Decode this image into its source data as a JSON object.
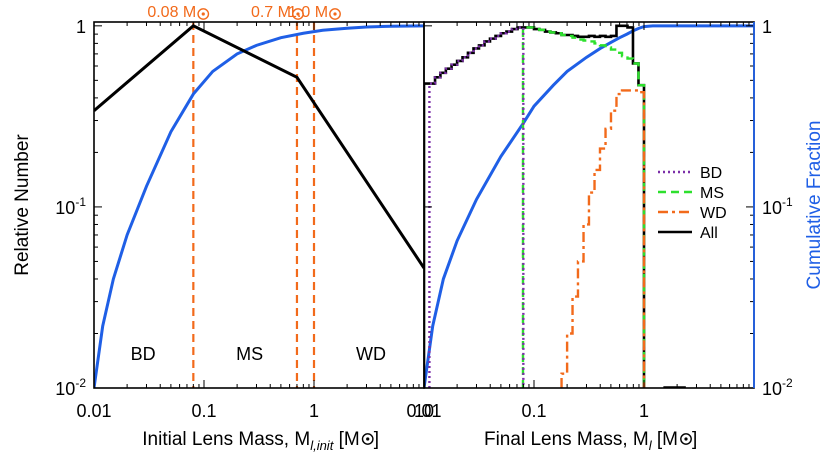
{
  "chart_data": [
    {
      "type": "line",
      "panel": "left",
      "xlabel": "Initial Lens Mass, M",
      "xlabel_sub": "l,init",
      "xlabel_unit_open": " [M",
      "xlabel_unit_close": "]",
      "ylabel": "Relative Number",
      "xscale": "log",
      "yscale": "log",
      "xlim": [
        0.01,
        10
      ],
      "ylim": [
        0.01,
        1.05
      ],
      "xticks": [
        {
          "value": 0.01,
          "label": "0.01"
        },
        {
          "value": 0.1,
          "label": "0.1"
        },
        {
          "value": 1,
          "label": "1"
        },
        {
          "value": 10,
          "label": "10"
        }
      ],
      "yticks": [
        {
          "value": 1,
          "base": "1",
          "exp": ""
        },
        {
          "value": 0.1,
          "base": "10",
          "exp": "-1"
        },
        {
          "value": 0.01,
          "base": "10",
          "exp": "-2"
        }
      ],
      "dividers": [
        {
          "x": 0.08,
          "label": "0.08 M",
          "color": "#f26a1b"
        },
        {
          "x": 0.7,
          "label": "0.7 M",
          "color": "#f26a1b"
        },
        {
          "x": 1.0,
          "label": "1.0 M",
          "color": "#f26a1b"
        }
      ],
      "regions": [
        {
          "label": "BD",
          "x": 0.028
        },
        {
          "label": "MS",
          "x": 0.26
        },
        {
          "label": "WD",
          "x": 3.3
        }
      ],
      "series": [
        {
          "color": "#000000",
          "x": [
            0.01,
            0.08,
            0.7,
            10
          ],
          "y": [
            0.34,
            1.0,
            0.52,
            0.046
          ]
        }
      ],
      "cumulative": {
        "color": "#1f5fe6",
        "x": [
          0.01,
          0.012,
          0.015,
          0.02,
          0.03,
          0.05,
          0.08,
          0.12,
          0.2,
          0.3,
          0.5,
          0.8,
          1.2,
          2,
          3,
          5,
          10
        ],
        "y": [
          0.01,
          0.022,
          0.04,
          0.07,
          0.13,
          0.26,
          0.42,
          0.56,
          0.7,
          0.78,
          0.86,
          0.91,
          0.945,
          0.97,
          0.985,
          0.995,
          1.0
        ]
      }
    },
    {
      "type": "line",
      "panel": "right",
      "xlabel": "Final Lens Mass, M",
      "xlabel_sub": "l",
      "xlabel_unit_open": " [M",
      "xlabel_unit_close": "]",
      "ylabel": "Cumulative Fraction",
      "xscale": "log",
      "yscale": "log",
      "xlim": [
        0.01,
        10
      ],
      "ylim": [
        0.01,
        1.05
      ],
      "xticks": [
        {
          "value": 0.01,
          "label": "0.01"
        },
        {
          "value": 0.1,
          "label": "0.1"
        },
        {
          "value": 1,
          "label": "1"
        }
      ],
      "yticks": [
        {
          "value": 1,
          "base": "1",
          "exp": ""
        },
        {
          "value": 0.1,
          "base": "10",
          "exp": "-1"
        },
        {
          "value": 0.01,
          "base": "10",
          "exp": "-2"
        }
      ],
      "legend": {
        "placement": "right",
        "items": [
          {
            "name": "BD",
            "color": "#7b2fa8",
            "dash": "2,3"
          },
          {
            "name": "MS",
            "color": "#2de02d",
            "dash": "8,5"
          },
          {
            "name": "WD",
            "color": "#f26a1b",
            "dash": "10,4,3,4"
          },
          {
            "name": "All",
            "color": "#000000",
            "dash": ""
          }
        ]
      },
      "series": [
        {
          "name": "BD",
          "style": "step",
          "color": "#7b2fa8",
          "dash": "2,3",
          "x": [
            0.0112,
            0.0126,
            0.0141,
            0.0158,
            0.0178,
            0.02,
            0.0224,
            0.0251,
            0.0282,
            0.0316,
            0.0355,
            0.0398,
            0.0447,
            0.0501,
            0.0562,
            0.0631,
            0.0708
          ],
          "y": [
            0.48,
            0.52,
            0.55,
            0.58,
            0.61,
            0.64,
            0.67,
            0.71,
            0.75,
            0.78,
            0.82,
            0.85,
            0.88,
            0.91,
            0.93,
            0.96,
            0.98
          ],
          "x_end": 0.08,
          "drop_to": 0.01
        },
        {
          "name": "MS",
          "style": "step",
          "color": "#2de02d",
          "dash": "8,5",
          "x": [
            0.0794,
            0.0891,
            0.1,
            0.112,
            0.126,
            0.141,
            0.158,
            0.178,
            0.2,
            0.224,
            0.251,
            0.282,
            0.316,
            0.355,
            0.398,
            0.447,
            0.501,
            0.562,
            0.631,
            0.708,
            0.794,
            0.891
          ],
          "y": [
            0.98,
            0.98,
            0.96,
            0.95,
            0.93,
            0.92,
            0.91,
            0.89,
            0.88,
            0.86,
            0.84,
            0.83,
            0.82,
            0.8,
            0.78,
            0.76,
            0.74,
            0.71,
            0.68,
            0.66,
            0.62,
            0.47
          ],
          "x_end": 1.0,
          "drop_to": 0.01
        },
        {
          "name": "WD",
          "style": "step",
          "color": "#f26a1b",
          "dash": "10,4,3,4",
          "x": [
            0.178,
            0.2,
            0.224,
            0.251,
            0.282,
            0.316,
            0.355,
            0.398,
            0.447,
            0.501,
            0.562,
            0.631,
            0.708,
            0.794,
            0.891
          ],
          "y": [
            0.012,
            0.02,
            0.032,
            0.05,
            0.08,
            0.12,
            0.16,
            0.21,
            0.27,
            0.34,
            0.42,
            0.44,
            0.44,
            0.44,
            0.43
          ],
          "x_end": 1.0,
          "drop_to": 0.01
        },
        {
          "name": "All",
          "style": "step",
          "color": "#000000",
          "dash": "",
          "x": [
            0.0112,
            0.0126,
            0.0141,
            0.0158,
            0.0178,
            0.02,
            0.0224,
            0.0251,
            0.0282,
            0.0316,
            0.0355,
            0.0398,
            0.0447,
            0.0501,
            0.0562,
            0.0631,
            0.0708,
            0.0794,
            0.0891,
            0.1,
            0.112,
            0.126,
            0.141,
            0.158,
            0.178,
            0.2,
            0.224,
            0.251,
            0.282,
            0.316,
            0.355,
            0.398,
            0.447,
            0.501,
            0.562,
            0.631,
            0.708,
            0.794,
            0.891
          ],
          "y": [
            0.48,
            0.52,
            0.55,
            0.58,
            0.61,
            0.64,
            0.67,
            0.71,
            0.75,
            0.78,
            0.82,
            0.85,
            0.88,
            0.91,
            0.93,
            0.96,
            0.98,
            0.98,
            0.98,
            0.96,
            0.95,
            0.93,
            0.92,
            0.91,
            0.89,
            0.89,
            0.88,
            0.87,
            0.87,
            0.88,
            0.87,
            0.88,
            0.87,
            0.88,
            1.0,
            1.0,
            0.98,
            0.62,
            0.47
          ],
          "x_end": 1.0,
          "drop_to": 0.01,
          "x_start": 0.01,
          "start_y": 0.48
        }
      ],
      "cumulative": {
        "color": "#1f5fe6",
        "x": [
          0.01,
          0.012,
          0.015,
          0.02,
          0.03,
          0.05,
          0.08,
          0.1,
          0.15,
          0.2,
          0.3,
          0.4,
          0.5,
          0.6,
          0.7,
          0.8,
          0.9,
          1.0,
          1.2,
          2,
          10
        ],
        "y": [
          0.01,
          0.022,
          0.04,
          0.065,
          0.11,
          0.19,
          0.29,
          0.36,
          0.47,
          0.56,
          0.67,
          0.75,
          0.81,
          0.86,
          0.9,
          0.94,
          0.97,
          0.99,
          1.0,
          1.0,
          1.0
        ]
      }
    }
  ]
}
